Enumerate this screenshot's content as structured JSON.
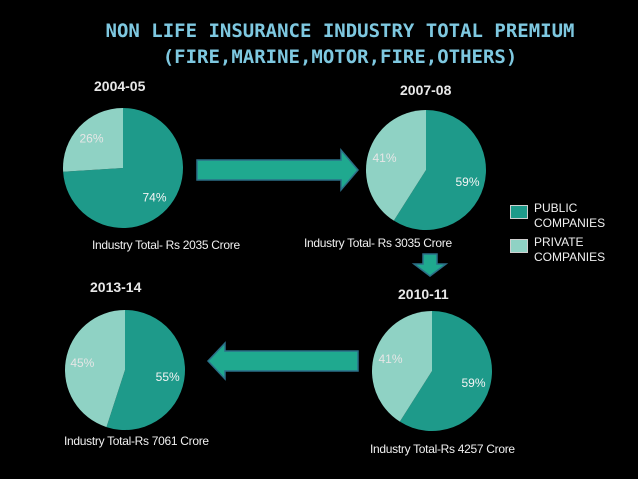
{
  "title": {
    "line1": "NON LIFE INSURANCE INDUSTRY TOTAL PREMIUM",
    "line2": "(FIRE,MARINE,MOTOR,FIRE,OTHERS)"
  },
  "colors": {
    "public": "#1e9a8a",
    "private": "#8fd2c4",
    "arrow_fill": "#1fa98f",
    "arrow_stroke": "#2b6f88",
    "background": "#000000"
  },
  "legend": {
    "items": [
      {
        "label_line1": "PUBLIC",
        "label_line2": "COMPANIES",
        "color": "#1e9a8a"
      },
      {
        "label_line1": "PRIVATE",
        "label_line2": "COMPANIES",
        "color": "#8fd2c4"
      }
    ]
  },
  "chart_data": [
    {
      "type": "pie",
      "title": "2004-05",
      "categories": [
        "PUBLIC COMPANIES",
        "PRIVATE COMPANIES"
      ],
      "values": [
        74,
        26
      ],
      "labels": [
        "74%",
        "26%"
      ],
      "caption": "Industry Total- Rs 2035 Crore"
    },
    {
      "type": "pie",
      "title": "2007-08",
      "categories": [
        "PUBLIC COMPANIES",
        "PRIVATE COMPANIES"
      ],
      "values": [
        59,
        41
      ],
      "labels": [
        "59%",
        "41%"
      ],
      "caption": "Industry Total- Rs 3035 Crore"
    },
    {
      "type": "pie",
      "title": "2010-11",
      "categories": [
        "PUBLIC COMPANIES",
        "PRIVATE COMPANIES"
      ],
      "values": [
        59,
        41
      ],
      "labels": [
        "59%",
        "41%"
      ],
      "caption": "Industry Total-Rs 4257 Crore"
    },
    {
      "type": "pie",
      "title": "2013-14",
      "categories": [
        "PUBLIC COMPANIES",
        "PRIVATE COMPANIES"
      ],
      "values": [
        55,
        45
      ],
      "labels": [
        "55%",
        "45%"
      ],
      "caption": "Industry Total-Rs 7061 Crore"
    }
  ]
}
